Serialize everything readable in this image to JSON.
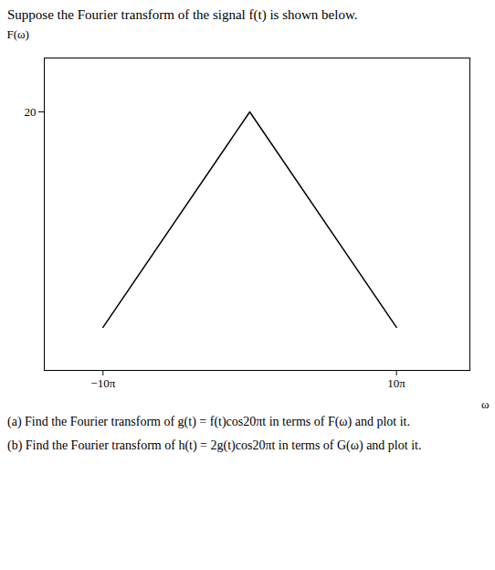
{
  "chart_data": {
    "type": "line",
    "title": "Suppose the Fourier transform of the signal f(t) is shown below.",
    "x": [
      -10,
      0,
      10
    ],
    "values": [
      0,
      20,
      0
    ],
    "color": "#000000",
    "x_label": "ω",
    "y_label": "F(ω)",
    "xlim": [
      -14,
      15
    ],
    "ylim": [
      -4,
      25
    ],
    "xticks": [
      {
        "value": -10,
        "label": "−10π"
      },
      {
        "value": 10,
        "label": "10π"
      }
    ],
    "yticks": [
      20
    ],
    "grid": false,
    "annotations": [
      "(a) Find the Fourier transform of g(t) = f(t)cos20πt in terms of F(ω) and plot it.",
      "(b) Find the Fourier transform of h(t) = 2g(t)cos20πt in terms of G(ω) and plot it."
    ]
  }
}
